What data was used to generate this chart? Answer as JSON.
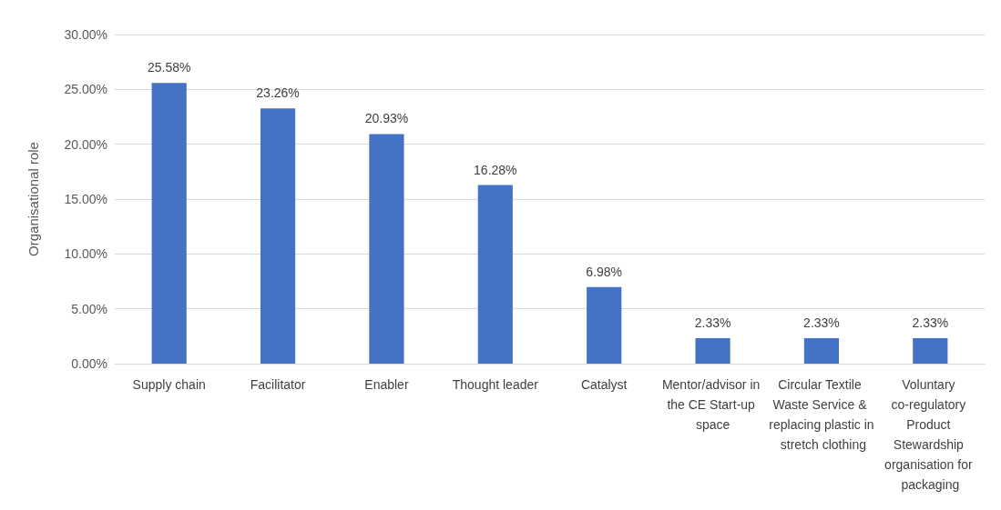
{
  "chart_data": {
    "type": "bar",
    "ylabel": "Organisational role",
    "categories": [
      "Supply chain",
      "Facilitator",
      "Enabler",
      "Thought leader",
      "Catalyst",
      "Mentor/advisor in the CE Start-up space",
      "Circular Textile Waste Service & replacing plastic in stretch clothing",
      "Voluntary co-regulatory Product Stewardship organisation for packaging"
    ],
    "values": [
      25.58,
      23.26,
      20.93,
      16.28,
      6.98,
      2.33,
      2.33,
      2.33
    ],
    "value_labels": [
      "25.58%",
      "23.26%",
      "20.93%",
      "16.28%",
      "6.98%",
      "2.33%",
      "2.33%",
      "2.33%"
    ],
    "color": "#4472c4",
    "ylim": [
      0,
      30
    ],
    "yticks": [
      {
        "value": 0,
        "label": "0.00%"
      },
      {
        "value": 5,
        "label": "5.00%"
      },
      {
        "value": 10,
        "label": "10.00%"
      },
      {
        "value": 15,
        "label": "15.00%"
      },
      {
        "value": 20,
        "label": "20.00%"
      },
      {
        "value": 25,
        "label": "25.00%"
      },
      {
        "value": 30,
        "label": "30.00%"
      }
    ],
    "grid": "y"
  }
}
